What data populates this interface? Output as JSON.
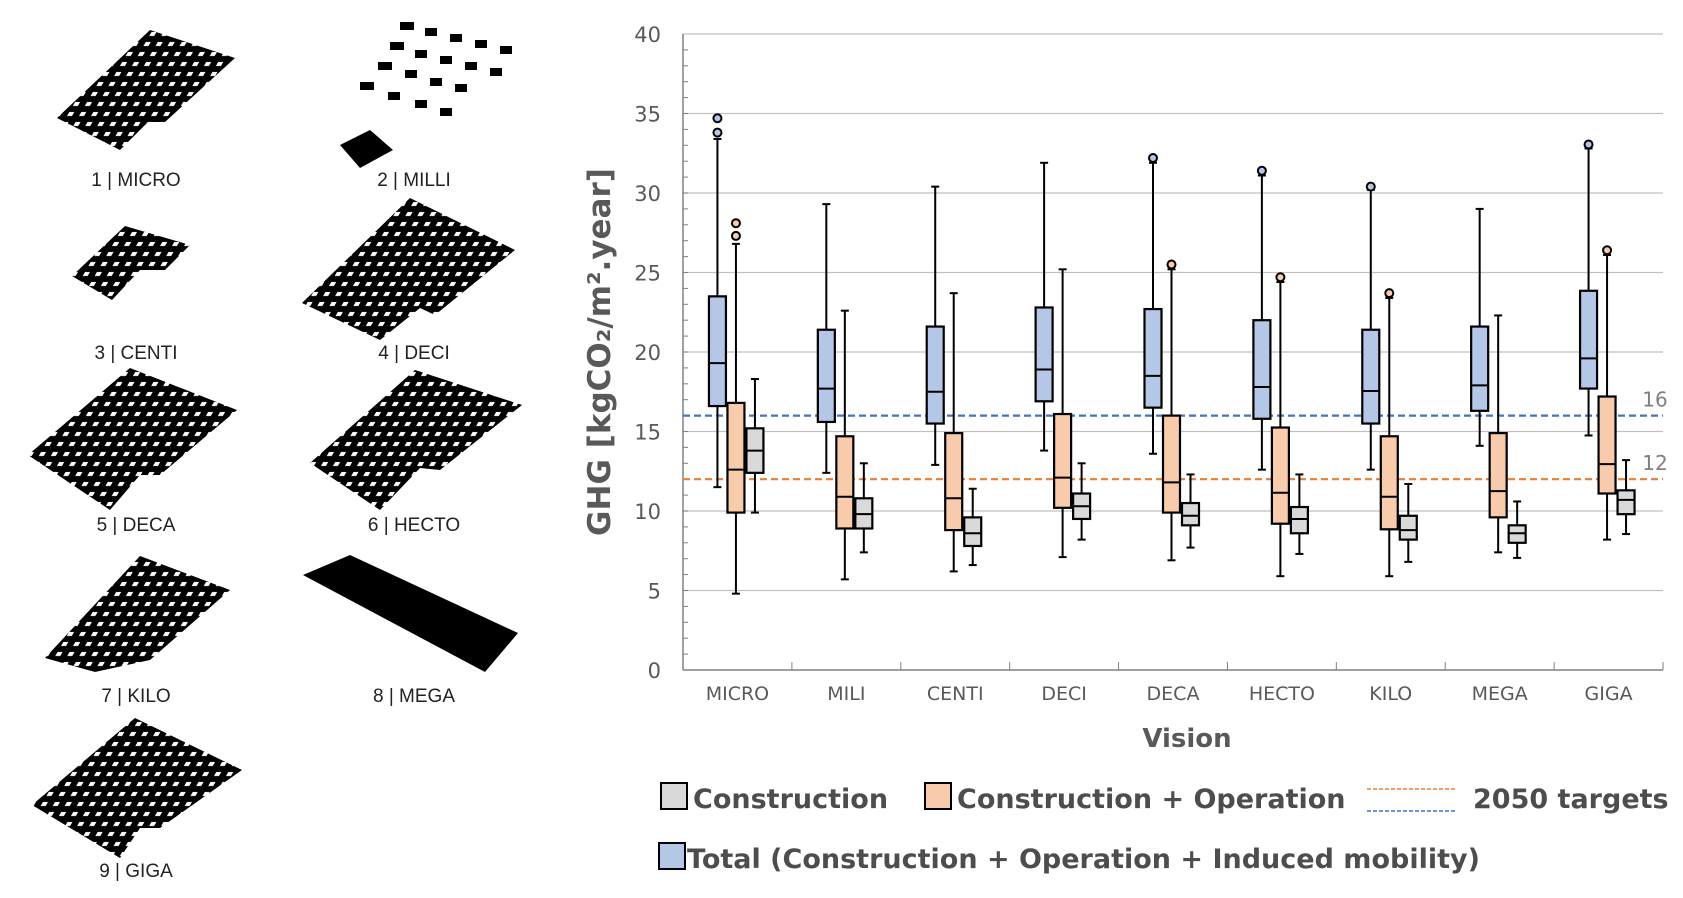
{
  "thumbnails": [
    {
      "label": "1 | MICRO"
    },
    {
      "label": "2 | MILLI"
    },
    {
      "label": "3 | CENTI"
    },
    {
      "label": "4 | DECI"
    },
    {
      "label": "5 | DECA"
    },
    {
      "label": "6 | HECTO"
    },
    {
      "label": "7 | KILO"
    },
    {
      "label": "8 | MEGA"
    },
    {
      "label": "9 | GIGA"
    }
  ],
  "chart_data": {
    "type": "box",
    "xlabel": "Vision",
    "ylabel": "GHG [kgCO₂/m².year]",
    "ylim": [
      0,
      40
    ],
    "yticks": [
      0,
      5,
      10,
      15,
      20,
      25,
      30,
      35,
      40
    ],
    "grid": true,
    "categories": [
      "MICRO",
      "MILI",
      "CENTI",
      "DECI",
      "DECA",
      "HECTO",
      "KILO",
      "MEGA",
      "GIGA"
    ],
    "series": [
      {
        "name": "Total (Construction + Operation + Induced mobility)",
        "color": "#b4c7e7",
        "boxes": [
          {
            "min": 11.5,
            "q1": 16.6,
            "median": 19.3,
            "q3": 23.5,
            "max": 33.4,
            "outliers": [
              33.8,
              34.7
            ]
          },
          {
            "min": 12.4,
            "q1": 15.6,
            "median": 17.7,
            "q3": 21.4,
            "max": 29.3,
            "outliers": []
          },
          {
            "min": 12.9,
            "q1": 15.5,
            "median": 17.5,
            "q3": 21.6,
            "max": 30.4,
            "outliers": []
          },
          {
            "min": 13.8,
            "q1": 16.9,
            "median": 18.9,
            "q3": 22.8,
            "max": 31.9,
            "outliers": []
          },
          {
            "min": 13.6,
            "q1": 16.5,
            "median": 18.5,
            "q3": 22.7,
            "max": 31.9,
            "outliers": [
              32.2
            ]
          },
          {
            "min": 12.6,
            "q1": 15.8,
            "median": 17.8,
            "q3": 22.0,
            "max": 31.1,
            "outliers": [
              31.4
            ]
          },
          {
            "min": 12.6,
            "q1": 15.5,
            "median": 17.55,
            "q3": 21.4,
            "max": 30.2,
            "outliers": [
              30.4
            ]
          },
          {
            "min": 14.1,
            "q1": 16.3,
            "median": 17.9,
            "q3": 21.6,
            "max": 29.0,
            "outliers": []
          },
          {
            "min": 14.75,
            "q1": 17.7,
            "median": 19.6,
            "q3": 23.85,
            "max": 32.8,
            "outliers": [
              33.05
            ]
          }
        ]
      },
      {
        "name": "Construction + Operation",
        "color": "#f8cbad",
        "boxes": [
          {
            "min": 4.8,
            "q1": 9.9,
            "median": 12.6,
            "q3": 16.8,
            "max": 26.8,
            "outliers": [
              27.3,
              28.1
            ]
          },
          {
            "min": 5.7,
            "q1": 8.9,
            "median": 10.9,
            "q3": 14.7,
            "max": 22.6,
            "outliers": []
          },
          {
            "min": 6.2,
            "q1": 8.8,
            "median": 10.8,
            "q3": 14.9,
            "max": 23.7,
            "outliers": []
          },
          {
            "min": 7.1,
            "q1": 10.2,
            "median": 12.1,
            "q3": 16.1,
            "max": 25.2,
            "outliers": []
          },
          {
            "min": 6.9,
            "q1": 9.9,
            "median": 11.8,
            "q3": 16.0,
            "max": 25.2,
            "outliers": [
              25.5
            ]
          },
          {
            "min": 5.9,
            "q1": 9.2,
            "median": 11.15,
            "q3": 15.25,
            "max": 24.4,
            "outliers": [
              24.7
            ]
          },
          {
            "min": 5.9,
            "q1": 8.85,
            "median": 10.9,
            "q3": 14.7,
            "max": 23.4,
            "outliers": [
              23.7
            ]
          },
          {
            "min": 7.4,
            "q1": 9.6,
            "median": 11.25,
            "q3": 14.9,
            "max": 22.3,
            "outliers": []
          },
          {
            "min": 8.2,
            "q1": 11.1,
            "median": 12.95,
            "q3": 17.2,
            "max": 26.1,
            "outliers": [
              26.4
            ]
          }
        ]
      },
      {
        "name": "Construction",
        "color": "#d9d9d9",
        "boxes": [
          {
            "min": 9.9,
            "q1": 12.4,
            "median": 13.8,
            "q3": 15.2,
            "max": 18.3,
            "outliers": []
          },
          {
            "min": 7.4,
            "q1": 8.9,
            "median": 9.8,
            "q3": 10.8,
            "max": 13.0,
            "outliers": []
          },
          {
            "min": 6.6,
            "q1": 7.8,
            "median": 8.6,
            "q3": 9.6,
            "max": 11.4,
            "outliers": []
          },
          {
            "min": 8.2,
            "q1": 9.5,
            "median": 10.3,
            "q3": 11.1,
            "max": 13.0,
            "outliers": []
          },
          {
            "min": 7.7,
            "q1": 9.1,
            "median": 9.7,
            "q3": 10.5,
            "max": 12.3,
            "outliers": []
          },
          {
            "min": 7.3,
            "q1": 8.6,
            "median": 9.5,
            "q3": 10.25,
            "max": 12.3,
            "outliers": []
          },
          {
            "min": 6.8,
            "q1": 8.2,
            "median": 8.8,
            "q3": 9.7,
            "max": 11.7,
            "outliers": []
          },
          {
            "min": 7.05,
            "q1": 8.0,
            "median": 8.6,
            "q3": 9.1,
            "max": 10.6,
            "outliers": []
          },
          {
            "min": 8.55,
            "q1": 9.8,
            "median": 10.7,
            "q3": 11.3,
            "max": 13.2,
            "outliers": []
          }
        ]
      }
    ],
    "reference_lines": [
      {
        "value": 16,
        "label": "16",
        "color": "#4472c4"
      },
      {
        "value": 12,
        "label": "12",
        "color": "#ed7d31"
      }
    ],
    "legend": {
      "construction": "Construction",
      "construction_operation": "Construction + Operation",
      "targets": "2050 targets",
      "total": "Total (Construction + Operation + Induced mobility)"
    }
  }
}
